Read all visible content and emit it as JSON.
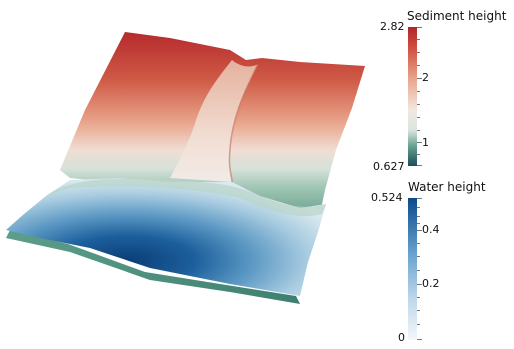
{
  "sediment_legend": {
    "title": "Sediment height",
    "max_label": "2.82",
    "min_label": "0.627",
    "tick_labels": [
      "2",
      "1"
    ]
  },
  "water_legend": {
    "title": "Water height",
    "max_label": "0.524",
    "min_label": "0",
    "tick_labels": [
      "0.4",
      "0.2"
    ]
  },
  "colors": {
    "sediment_high": "#b2282a",
    "sediment_mid": "#f1e6e1",
    "sediment_low": "#1d4f5c",
    "water_high": "#0b4a8a",
    "water_low": "#f1f6fb",
    "water_base": "#4f8e80"
  }
}
